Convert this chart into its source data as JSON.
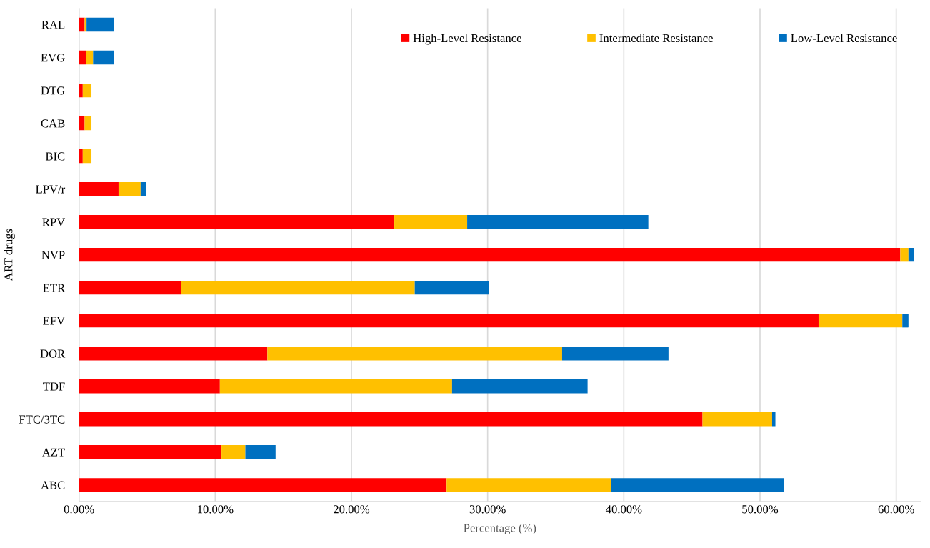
{
  "chart_data": {
    "type": "bar",
    "orientation": "horizontal",
    "stacked": true,
    "xlabel": "Percentage (%)",
    "ylabel": "ART drugs",
    "categories": [
      "RAL",
      "EVG",
      "DTG",
      "CAB",
      "BIC",
      "LPV/r",
      "RPV",
      "NVP",
      "ETR",
      "EFV",
      "DOR",
      "TDF",
      "FTC/3TC",
      "AZT",
      "ABC"
    ],
    "series": [
      {
        "name": "High-Level Resistance",
        "color": "#ff0000",
        "values": [
          0.41,
          0.51,
          0.27,
          0.41,
          0.27,
          2.9,
          23.15,
          60.3,
          7.5,
          54.3,
          13.83,
          10.34,
          45.78,
          10.46,
          26.99
        ]
      },
      {
        "name": "Intermediate Resistance",
        "color": "#ffc000",
        "values": [
          0.14,
          0.52,
          0.64,
          0.5,
          0.64,
          1.62,
          5.35,
          0.6,
          17.15,
          6.15,
          21.64,
          17.05,
          5.11,
          1.75,
          12.09
        ]
      },
      {
        "name": "Low-Level Resistance",
        "color": "#0070c0",
        "values": [
          1.99,
          1.52,
          null,
          null,
          null,
          0.38,
          13.3,
          0.4,
          5.45,
          0.45,
          7.81,
          9.95,
          0.24,
          2.22,
          12.68
        ]
      }
    ],
    "xlim": [
      0,
      61.8
    ],
    "xticks": [
      {
        "value": 0,
        "label": "0.00%"
      },
      {
        "value": 10,
        "label": "10.00%"
      },
      {
        "value": 20,
        "label": "20.00%"
      },
      {
        "value": 30,
        "label": "30.00%"
      },
      {
        "value": 40,
        "label": "40.00%"
      },
      {
        "value": 50,
        "label": "50.00%"
      },
      {
        "value": 60,
        "label": "60.00%"
      }
    ],
    "grid": "x",
    "legend": "top right"
  }
}
